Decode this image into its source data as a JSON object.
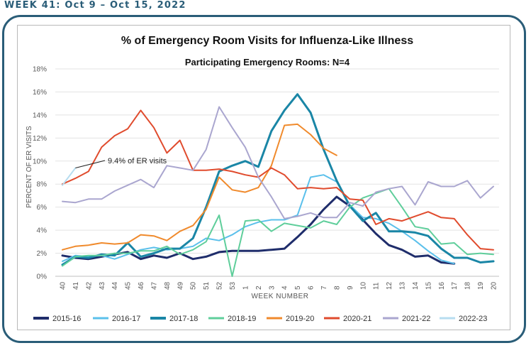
{
  "header": {
    "week_label": "WEEK 41: Oct 9 – Oct 15, 2022"
  },
  "chart_data": {
    "type": "line",
    "title": "% of Emergency Room Visits for Influenza-Like Illness",
    "subtitle": "Participating Emergency Rooms: N=4",
    "xlabel": "WEEK NUMBER",
    "ylabel": "PERCENT OF ER VISITS",
    "ylim": [
      0,
      18
    ],
    "yticks": [
      "0%",
      "2%",
      "4%",
      "6%",
      "8%",
      "10%",
      "12%",
      "14%",
      "16%",
      "18%"
    ],
    "categories": [
      "40",
      "41",
      "42",
      "43",
      "44",
      "45",
      "46",
      "47",
      "48",
      "49",
      "50",
      "51",
      "52",
      "53",
      "1",
      "2",
      "3",
      "4",
      "5",
      "6",
      "7",
      "8",
      "9",
      "10",
      "11",
      "12",
      "13",
      "14",
      "15",
      "16",
      "17",
      "18",
      "19",
      "20"
    ],
    "grid": true,
    "legend_position": "bottom",
    "annotation": {
      "text": "9.4% of ER visits",
      "series": "2022-23",
      "category": "41"
    },
    "series": [
      {
        "name": "2015-16",
        "color": "#1f2d6b",
        "width": 3,
        "values": [
          1.8,
          1.6,
          1.5,
          1.7,
          1.9,
          2.1,
          1.5,
          1.8,
          1.6,
          2.0,
          1.5,
          1.7,
          2.1,
          2.2,
          2.2,
          2.2,
          2.3,
          2.4,
          3.4,
          4.5,
          5.8,
          6.9,
          6.1,
          4.9,
          3.7,
          2.7,
          2.3,
          1.7,
          1.8,
          1.2,
          1.1,
          null,
          null,
          null
        ]
      },
      {
        "name": "2016-17",
        "color": "#5bc0eb",
        "width": 2,
        "values": [
          1.3,
          1.8,
          1.7,
          1.8,
          1.5,
          1.9,
          2.3,
          2.5,
          2.3,
          2.4,
          2.6,
          3.3,
          3.1,
          3.6,
          4.3,
          4.7,
          4.9,
          4.9,
          5.3,
          8.6,
          8.8,
          8.2,
          6.2,
          5.1,
          5.0,
          4.6,
          3.9,
          3.1,
          2.2,
          1.4,
          1.1,
          null,
          null,
          null
        ]
      },
      {
        "name": "2017-18",
        "color": "#1a86a6",
        "width": 3,
        "values": [
          1.0,
          1.7,
          1.6,
          1.9,
          1.8,
          2.9,
          1.7,
          2.0,
          2.4,
          2.4,
          3.3,
          6.0,
          9.1,
          9.6,
          10.0,
          9.5,
          12.6,
          14.4,
          15.8,
          14.2,
          11.0,
          8.3,
          6.1,
          4.8,
          5.5,
          3.9,
          3.9,
          3.8,
          3.5,
          2.4,
          1.6,
          1.6,
          1.2,
          1.3
        ]
      },
      {
        "name": "2018-19",
        "color": "#5fce9b",
        "width": 2,
        "values": [
          0.9,
          1.7,
          1.8,
          1.8,
          2.0,
          2.0,
          2.2,
          2.2,
          2.6,
          1.9,
          2.3,
          3.0,
          5.3,
          0.0,
          4.8,
          4.9,
          3.9,
          4.6,
          4.4,
          4.2,
          4.8,
          4.5,
          6.0,
          6.8,
          7.2,
          7.6,
          6.0,
          4.3,
          4.1,
          2.8,
          2.9,
          1.9,
          2.0,
          1.9
        ]
      },
      {
        "name": "2019-20",
        "color": "#f08a2c",
        "width": 2,
        "values": [
          2.3,
          2.6,
          2.7,
          2.9,
          2.8,
          2.9,
          3.6,
          3.5,
          3.1,
          3.9,
          4.4,
          5.8,
          8.6,
          7.5,
          7.3,
          7.7,
          9.6,
          13.1,
          13.2,
          12.3,
          11.1,
          10.5,
          null,
          null,
          null,
          null,
          null,
          null,
          null,
          null,
          null,
          null,
          null,
          null
        ]
      },
      {
        "name": "2020-21",
        "color": "#e04b2d",
        "width": 2,
        "values": [
          8.0,
          8.5,
          9.1,
          11.2,
          12.2,
          12.8,
          14.4,
          12.9,
          10.7,
          11.8,
          9.2,
          9.2,
          9.3,
          9.1,
          8.8,
          8.6,
          9.4,
          8.8,
          7.6,
          7.7,
          7.6,
          7.7,
          6.7,
          6.6,
          4.5,
          5.0,
          4.8,
          5.2,
          5.6,
          5.1,
          5.0,
          3.6,
          2.4,
          2.3
        ]
      },
      {
        "name": "2021-22",
        "color": "#aaa6cf",
        "width": 2,
        "values": [
          6.5,
          6.4,
          6.7,
          6.7,
          7.4,
          7.9,
          8.4,
          7.7,
          9.6,
          9.4,
          9.2,
          11.0,
          14.7,
          12.9,
          11.2,
          8.6,
          6.9,
          5.0,
          5.2,
          5.5,
          5.1,
          5.1,
          6.4,
          6.1,
          7.3,
          7.6,
          7.8,
          6.2,
          8.2,
          7.8,
          7.8,
          8.3,
          6.8,
          7.8
        ]
      },
      {
        "name": "2022-23",
        "color": "#b7ddf0",
        "width": 2,
        "values": [
          7.9,
          9.4,
          null,
          null,
          null,
          null,
          null,
          null,
          null,
          null,
          null,
          null,
          null,
          null,
          null,
          null,
          null,
          null,
          null,
          null,
          null,
          null,
          null,
          null,
          null,
          null,
          null,
          null,
          null,
          null,
          null,
          null,
          null,
          null
        ]
      }
    ]
  }
}
